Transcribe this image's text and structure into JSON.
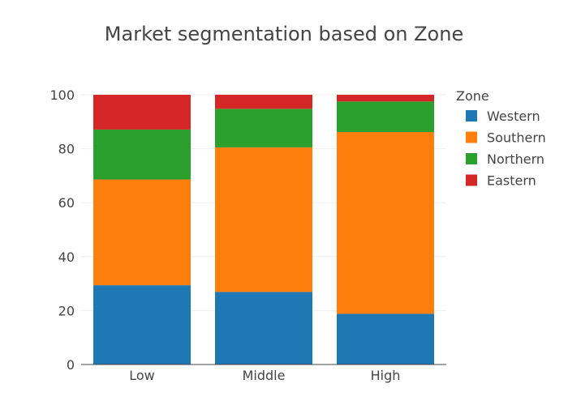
{
  "chart_data": {
    "type": "bar",
    "stacked": true,
    "title": "Market segmentation based on Zone",
    "xlabel": "",
    "ylabel": "",
    "categories": [
      "Low",
      "Middle",
      "High"
    ],
    "ylim": [
      0,
      100
    ],
    "yticks": [
      "0",
      "20",
      "40",
      "60",
      "80",
      "100"
    ],
    "grid": true,
    "legend": {
      "title": "Zone",
      "position": "top-right"
    },
    "series": [
      {
        "name": "Western",
        "color": "#1f77b4",
        "values": [
          29.4,
          26.9,
          18.8
        ]
      },
      {
        "name": "Southern",
        "color": "#ff7f0e",
        "values": [
          39.2,
          53.6,
          67.4
        ]
      },
      {
        "name": "Northern",
        "color": "#2ca02c",
        "values": [
          18.5,
          14.3,
          11.3
        ]
      },
      {
        "name": "Eastern",
        "color": "#d62728",
        "values": [
          12.9,
          5.2,
          2.5
        ]
      }
    ]
  }
}
